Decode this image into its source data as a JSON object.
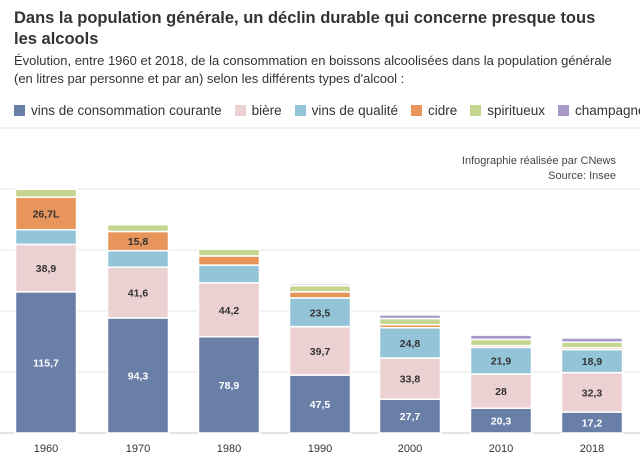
{
  "title": "Dans la population générale, un déclin durable qui concerne presque tous les alcools",
  "subtitle": "Évolution, entre 1960 et 2018, de la consommation en boissons alcoolisées dans la population générale (en litres par personne et par an) selon les différents types d'alcool :",
  "credits": {
    "line1": "Infographie réalisée par CNews",
    "line2": "Source: Insee"
  },
  "chart_data": {
    "type": "bar",
    "stacked": true,
    "categories": [
      "1960",
      "1970",
      "1980",
      "1990",
      "2000",
      "2010",
      "2018"
    ],
    "series": [
      {
        "name": "vins de consommation courante",
        "color": "#6a7fa8",
        "values": [
          115.7,
          94.3,
          78.9,
          47.5,
          27.7,
          20.3,
          17.2
        ],
        "labels": [
          "115,7",
          "94,3",
          "78,9",
          "47,5",
          "27,7",
          "20,3",
          "17,2"
        ]
      },
      {
        "name": "bière",
        "color": "#ecd1d3",
        "values": [
          38.9,
          41.6,
          44.2,
          39.7,
          33.8,
          28,
          32.3
        ],
        "labels": [
          "38,9",
          "41,6",
          "44,2",
          "39,7",
          "33,8",
          "28",
          "32,3"
        ]
      },
      {
        "name": "vins de qualité",
        "color": "#93c4d8",
        "values": [
          12,
          13.5,
          14.5,
          23.5,
          24.8,
          21.9,
          18.9
        ],
        "labels": [
          "",
          "",
          "",
          "23,5",
          "24,8",
          "21,9",
          "18,9"
        ]
      },
      {
        "name": "cidre",
        "color": "#e8955c",
        "values": [
          26.7,
          15.8,
          7.5,
          5,
          2.5,
          1.5,
          1.5
        ],
        "labels": [
          "26,7L",
          "15,8",
          "",
          "",
          "",
          "",
          ""
        ]
      },
      {
        "name": "spiritueux",
        "color": "#c3d58f",
        "values": [
          6.5,
          5.5,
          5.5,
          5,
          5,
          5,
          4.5
        ],
        "labels": [
          "",
          "",
          "",
          "",
          "",
          "",
          ""
        ]
      },
      {
        "name": "champagne",
        "color": "#a999c9",
        "values": [
          0,
          1,
          1.2,
          1.5,
          3,
          3.5,
          3.5
        ],
        "labels": [
          "",
          "",
          "",
          "",
          "",
          "",
          ""
        ]
      }
    ],
    "ylim": [
      0,
      250
    ],
    "grid": true,
    "legend_position": "top"
  }
}
